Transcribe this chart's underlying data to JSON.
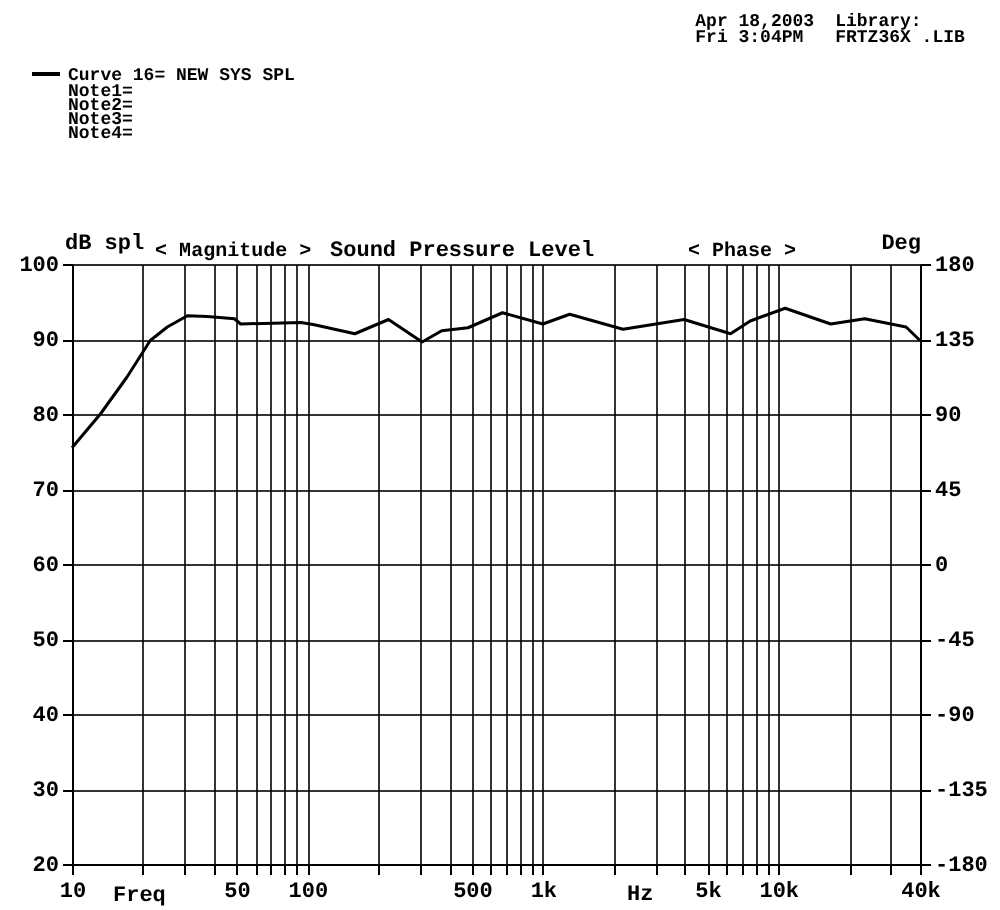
{
  "chart_data": {
    "type": "line",
    "title": "Sound Pressure Level",
    "xlabel": "Freq",
    "ylabel": "dB spl",
    "y2label": "Deg",
    "annotations": [
      "< Magnitude >",
      "< Phase >",
      "Apr 18,2003",
      "Fri  3:04PM",
      "Library:",
      "FRTZ36X .LIB",
      "Note1=",
      "Note2=",
      "Note3=",
      "Note4=",
      "Hz"
    ],
    "series": [
      {
        "name": "Curve 16= NEW SYS SPL",
        "color": "#000000",
        "x": [
          10,
          13.2,
          17.1,
          21.5,
          25.4,
          30.9,
          37.6,
          49,
          52,
          94,
          107,
          159,
          221,
          307,
          372,
          481,
          674,
          1000,
          1300,
          2190,
          3980,
          6270,
          7600,
          10700,
          16700,
          23300,
          34900,
          40000
        ],
        "values": [
          75.5,
          80,
          84.9,
          89.8,
          91.6,
          93.1,
          93,
          92.7,
          92,
          92.2,
          91.9,
          90.7,
          92.6,
          89.6,
          91.1,
          91.5,
          93.5,
          92,
          93.3,
          91.3,
          92.6,
          90.7,
          92.4,
          94.1,
          92,
          92.7,
          91.6,
          89.8
        ]
      }
    ],
    "log": "x",
    "xlim": [
      10,
      40000
    ],
    "xticks": [
      10,
      {
        "value": 20,
        "label": null
      },
      {
        "value": 30,
        "label": null
      },
      {
        "value": 40,
        "label": null
      },
      50,
      {
        "value": 60,
        "label": null
      },
      {
        "value": 70,
        "label": null
      },
      {
        "value": 80,
        "label": null
      },
      {
        "value": 90,
        "label": null
      },
      100,
      {
        "value": 200,
        "label": null
      },
      {
        "value": 300,
        "label": null
      },
      {
        "value": 400,
        "label": null
      },
      500,
      {
        "value": 600,
        "label": null
      },
      {
        "value": 700,
        "label": null
      },
      {
        "value": 800,
        "label": null
      },
      {
        "value": 900,
        "label": null
      },
      {
        "value": 1000,
        "label": "1k"
      },
      {
        "value": 2000,
        "label": null
      },
      {
        "value": 3000,
        "label": null
      },
      {
        "value": 4000,
        "label": null
      },
      {
        "value": 5000,
        "label": "5k"
      },
      {
        "value": 6000,
        "label": null
      },
      {
        "value": 7000,
        "label": null
      },
      {
        "value": 8000,
        "label": null
      },
      {
        "value": 9000,
        "label": null
      },
      {
        "value": 10000,
        "label": "10k"
      },
      {
        "value": 20000,
        "label": null
      },
      {
        "value": 30000,
        "label": null
      },
      {
        "value": 40000,
        "label": "40k"
      }
    ],
    "ylim": [
      20,
      100
    ],
    "yticks": [
      20,
      30,
      40,
      50,
      60,
      70,
      80,
      90,
      100
    ],
    "y2lim": [
      -180,
      180
    ],
    "y2ticks": [
      -180,
      -135,
      -90,
      -45,
      0,
      45,
      90,
      135,
      180
    ],
    "grid": true,
    "legend": "top left",
    "line_style": "solid",
    "marker": "none"
  }
}
